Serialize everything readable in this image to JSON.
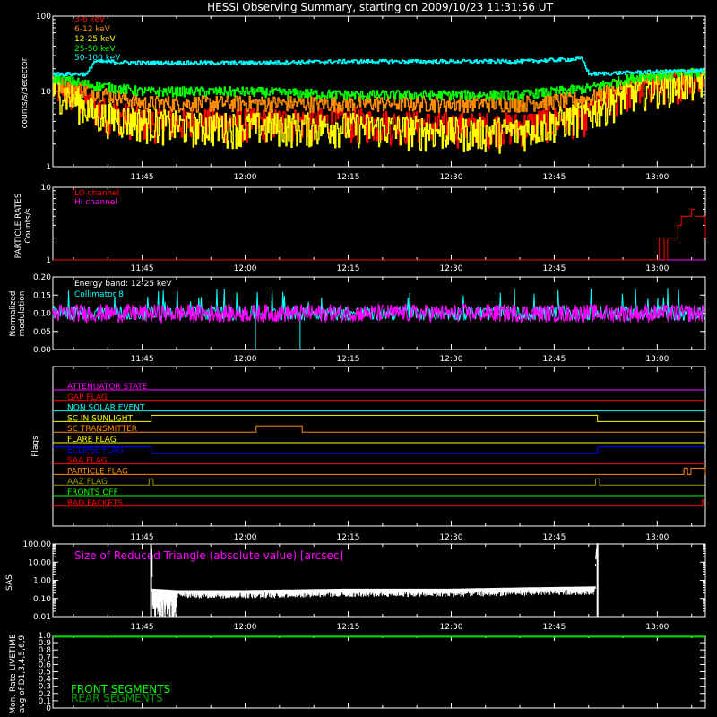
{
  "page_title": "HESSI Observing Summary, starting on 2009/10/23 11:31:56 UT",
  "time_ticks": [
    "11:45",
    "12:00",
    "12:15",
    "12:30",
    "12:45",
    "13:00"
  ],
  "time_tick_minutes": [
    705,
    720,
    735,
    750,
    765,
    780
  ],
  "colors": {
    "3-6 keV": "#ff0000",
    "6-12 keV": "#ff8c00",
    "12-25 keV": "#ffff00",
    "25-50 keV": "#00ff00",
    "50-100 keV": "#00ffff",
    "lo_channel": "#ff0000",
    "hi_channel": "#ff00ff",
    "energy_band": "#ffffff",
    "collimator": "#00ffff",
    "modulation": "#ff00ff",
    "triangle": "#ff00ff",
    "front": "#00ff00",
    "rear": "#00a000"
  },
  "chart_data": [
    {
      "id": "count_rates",
      "type": "line",
      "ylabel": "counts/s/detector",
      "ylog": true,
      "ylim": [
        1,
        100
      ],
      "y_ticks": [
        "100",
        "10",
        "1"
      ],
      "xlim_minutes": [
        692,
        787
      ],
      "x_tick_labels": [
        "11:45",
        "12:00",
        "12:15",
        "12:30",
        "12:45",
        "13:00"
      ],
      "series": [
        {
          "name": "3-6 keV",
          "color": "#ff0000",
          "x": [
            692,
            698,
            705,
            712,
            720,
            735,
            750,
            760,
            770,
            778,
            787
          ],
          "y": [
            12,
            6,
            4,
            4,
            4,
            4,
            3.5,
            3.5,
            5,
            12,
            15
          ]
        },
        {
          "name": "6-12 keV",
          "color": "#ff8c00",
          "x": [
            692,
            698,
            705,
            712,
            720,
            735,
            750,
            760,
            770,
            778,
            787
          ],
          "y": [
            13,
            10,
            7,
            7,
            7,
            7,
            7,
            7,
            8,
            14,
            16
          ]
        },
        {
          "name": "12-25 keV",
          "color": "#ffff00",
          "x": [
            692,
            698,
            705,
            712,
            720,
            735,
            750,
            760,
            770,
            778,
            787
          ],
          "y": [
            11,
            5,
            4,
            3.5,
            3.5,
            3.5,
            3,
            3,
            5,
            11,
            14
          ]
        },
        {
          "name": "25-50 keV",
          "color": "#00ff00",
          "x": [
            692,
            698,
            705,
            712,
            720,
            735,
            750,
            760,
            770,
            778,
            787
          ],
          "y": [
            15,
            12,
            10,
            10,
            10,
            9,
            9,
            9,
            11,
            16,
            18
          ]
        },
        {
          "name": "50-100 keV",
          "color": "#00ffff",
          "x": [
            692,
            697,
            698,
            705,
            720,
            735,
            750,
            760,
            769,
            770,
            778,
            787
          ],
          "y": [
            17,
            17,
            25,
            24,
            24,
            25,
            25,
            25,
            27,
            17,
            18,
            19
          ]
        }
      ]
    },
    {
      "id": "particle_rates",
      "type": "line",
      "ylabel": "PARTICLE RATES Counts/s",
      "ylog": true,
      "ylim": [
        1,
        10
      ],
      "y_ticks": [
        "10",
        "1"
      ],
      "series": [
        {
          "name": "LO channel",
          "color": "#ff0000",
          "x": [
            692,
            780,
            780.3,
            781,
            781.5,
            783,
            783.5,
            785,
            785.5,
            787
          ],
          "y": [
            1,
            1,
            2,
            1,
            2,
            3,
            4,
            5,
            4,
            2
          ]
        },
        {
          "name": "HI channel",
          "color": "#ff00ff",
          "x": [
            692,
            787
          ],
          "y": [
            1,
            1
          ]
        }
      ]
    },
    {
      "id": "modulation",
      "type": "line",
      "ylabel": "Normalized modulation",
      "ylim": [
        0,
        0.2
      ],
      "y_ticks": [
        "0.20",
        "0.15",
        "0.10",
        "0.05",
        "0.00"
      ],
      "annotation": "Energy band: 12-25 keV",
      "series": [
        {
          "name": "Collimator 8",
          "color": "#00ffff",
          "mean": 0.1
        },
        {
          "name": "",
          "color": "#ff00ff",
          "mean": 0.1
        }
      ]
    },
    {
      "id": "flags",
      "type": "line",
      "ylabel": "Flags",
      "flags": [
        {
          "name": "ATTENUATOR STATE",
          "color": "#ff00ff",
          "intervals": []
        },
        {
          "name": "GAP FLAG",
          "color": "#ff0000",
          "intervals": []
        },
        {
          "name": "NON SOLAR EVENT",
          "color": "#00ffff",
          "intervals": []
        },
        {
          "name": "SC IN SUNLIGHT",
          "color": "#ffff00",
          "intervals": [
            [
              706.3,
              771.3
            ]
          ]
        },
        {
          "name": "SC TRANSMITTER",
          "color": "#ff8c00",
          "intervals": [
            [
              721.6,
              728.3
            ]
          ]
        },
        {
          "name": "FLARE FLAG",
          "color": "#ffff00",
          "intervals": []
        },
        {
          "name": "ECLIPSE FLAG",
          "color": "#0000ff",
          "intervals": [
            [
              692,
              706.3
            ],
            [
              771.3,
              787
            ]
          ],
          "base_high": true
        },
        {
          "name": "SAA FLAG",
          "color": "#ff0000",
          "intervals": []
        },
        {
          "name": "PARTICLE FLAG",
          "color": "#ff8c00",
          "intervals": [
            [
              783.9,
              784.4
            ],
            [
              784.9,
              787
            ]
          ]
        },
        {
          "name": "AAZ FLAG",
          "color": "#9a9a00",
          "intervals": [
            [
              706,
              706.6
            ],
            [
              771,
              771.6
            ]
          ]
        },
        {
          "name": "FRONTS OFF",
          "color": "#00ff00",
          "intervals": []
        },
        {
          "name": "BAD PACKETS",
          "color": "#ff0000",
          "intervals": [
            [
              786.6,
              786.8
            ]
          ]
        }
      ]
    },
    {
      "id": "sas",
      "type": "line",
      "ylabel": "SAS",
      "ylog": true,
      "ylim": [
        0.01,
        100
      ],
      "y_ticks": [
        "100.00",
        "10.00",
        "1.00",
        "0.10",
        "0.01"
      ],
      "annotation": "Size of Reduced Triangle (absolute value) [arcsec]",
      "series": [
        {
          "name": "",
          "color": "#ffffff",
          "x": [
            706.3,
            706.5,
            710,
            720,
            735,
            750,
            760,
            771,
            771.3
          ],
          "y": [
            100,
            0.3,
            0.25,
            0.25,
            0.3,
            0.3,
            0.35,
            0.4,
            100
          ]
        }
      ]
    },
    {
      "id": "livetime",
      "type": "line",
      "ylabel": "Mon. Rate LIVETIME avg of D1,3,4,5,6,9",
      "ylim": [
        0,
        1
      ],
      "y_ticks": [
        "1.0",
        "0.9",
        "0.8",
        "0.7",
        "0.6",
        "0.5",
        "0.4",
        "0.3",
        "0.2",
        "0.1",
        "0"
      ],
      "series": [
        {
          "name": "FRONT SEGMENTS",
          "color": "#00ff00",
          "x": [
            692,
            787
          ],
          "y": [
            0.98,
            0.98
          ]
        },
        {
          "name": "REAR SEGMENTS",
          "color": "#00a000",
          "x": [
            692,
            787
          ],
          "y": [
            0.99,
            0.99
          ]
        }
      ]
    }
  ]
}
